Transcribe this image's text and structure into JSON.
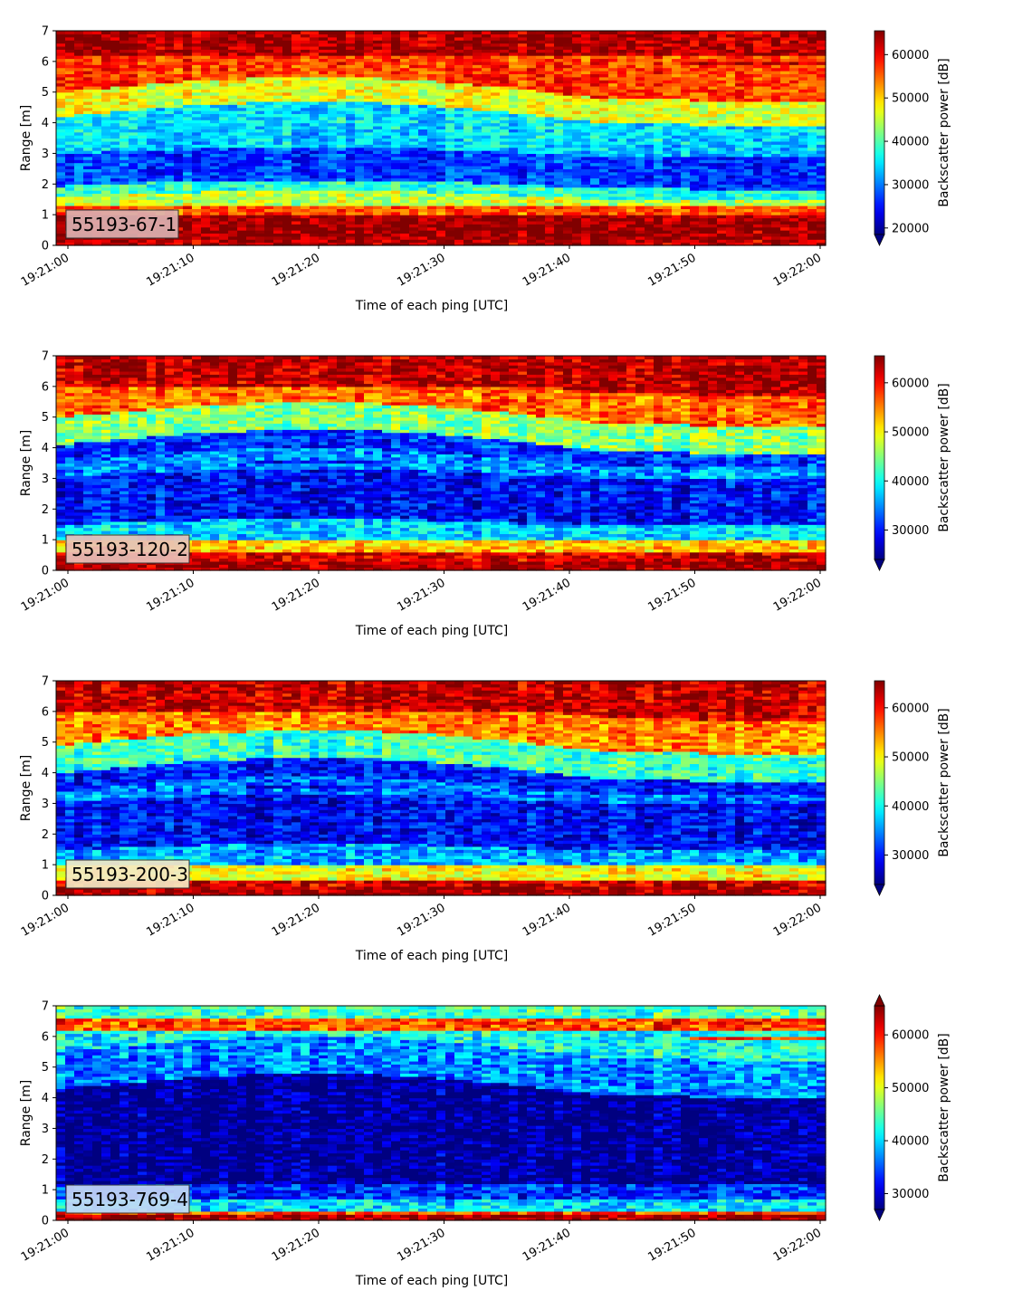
{
  "figure": {
    "background": "#ffffff"
  },
  "colormap": "jet",
  "chart_data": [
    {
      "type": "heatmap",
      "label": "55193-67-1",
      "label_bg": "#dcb1b1",
      "xlabel": "Time of each ping [UTC]",
      "ylabel": "Range [m]",
      "x_ticks": [
        "19:21:00",
        "19:21:10",
        "19:21:20",
        "19:21:30",
        "19:21:40",
        "19:21:50",
        "19:22:00"
      ],
      "y_ticks": [
        "0",
        "1",
        "2",
        "3",
        "4",
        "5",
        "6",
        "7"
      ],
      "ylim": [
        0,
        7
      ],
      "colorbar": {
        "label": "Backscatter power [dB]",
        "ticks": [
          "20000",
          "30000",
          "40000",
          "50000",
          "60000"
        ],
        "range": [
          18500,
          65500
        ],
        "extend": "min"
      },
      "bands": [
        {
          "range": [
            0.0,
            0.25
          ],
          "value": 63000
        },
        {
          "range": [
            0.25,
            1.05
          ],
          "value": 64500
        },
        {
          "range": [
            1.05,
            1.3
          ],
          "value": 56000
        },
        {
          "range": [
            1.3,
            1.6
          ],
          "value": 45000
        },
        {
          "range": [
            1.6,
            1.95
          ],
          "value": 38000
        },
        {
          "range": [
            1.95,
            3.0
          ],
          "value": 27000
        },
        {
          "range": [
            3.0,
            3.4
          ],
          "value": 34000
        },
        {
          "range": [
            3.4,
            4.2
          ],
          "value": 35000
        },
        {
          "range": [
            4.2,
            5.0
          ],
          "value": 47000
        },
        {
          "range": [
            5.0,
            6.2
          ],
          "value": 57000
        },
        {
          "range": [
            6.2,
            7.0
          ],
          "value": 63500
        }
      ]
    },
    {
      "type": "heatmap",
      "label": "55193-120-2",
      "label_bg": "#e8c0b8",
      "xlabel": "Time of each ping [UTC]",
      "ylabel": "Range [m]",
      "x_ticks": [
        "19:21:00",
        "19:21:10",
        "19:21:20",
        "19:21:30",
        "19:21:40",
        "19:21:50",
        "19:22:00"
      ],
      "y_ticks": [
        "0",
        "1",
        "2",
        "3",
        "4",
        "5",
        "6",
        "7"
      ],
      "ylim": [
        0,
        7
      ],
      "colorbar": {
        "label": "Backscatter power [dB]",
        "ticks": [
          "30000",
          "40000",
          "50000",
          "60000"
        ],
        "range": [
          24000,
          65500
        ],
        "extend": "min"
      },
      "bands": [
        {
          "range": [
            0.0,
            0.3
          ],
          "value": 64000
        },
        {
          "range": [
            0.3,
            0.6
          ],
          "value": 62000
        },
        {
          "range": [
            0.6,
            1.0
          ],
          "value": 52000
        },
        {
          "range": [
            1.0,
            1.5
          ],
          "value": 38000
        },
        {
          "range": [
            1.5,
            3.1
          ],
          "value": 29500
        },
        {
          "range": [
            3.1,
            3.5
          ],
          "value": 35000
        },
        {
          "range": [
            3.5,
            4.1
          ],
          "value": 31000
        },
        {
          "range": [
            4.1,
            5.0
          ],
          "value": 45000
        },
        {
          "range": [
            5.0,
            6.0
          ],
          "value": 56000
        },
        {
          "range": [
            6.0,
            7.0
          ],
          "value": 63000
        }
      ]
    },
    {
      "type": "heatmap",
      "label": "55193-200-3",
      "label_bg": "#f4e9c4",
      "xlabel": "Time of each ping [UTC]",
      "ylabel": "Range [m]",
      "x_ticks": [
        "19:21:00",
        "19:21:10",
        "19:21:20",
        "19:21:30",
        "19:21:40",
        "19:21:50",
        "19:22:00"
      ],
      "y_ticks": [
        "0",
        "1",
        "2",
        "3",
        "4",
        "5",
        "6",
        "7"
      ],
      "ylim": [
        0,
        7
      ],
      "colorbar": {
        "label": "Backscatter power [dB]",
        "ticks": [
          "30000",
          "40000",
          "50000",
          "60000"
        ],
        "range": [
          24000,
          65500
        ],
        "extend": "min"
      },
      "bands": [
        {
          "range": [
            0.0,
            0.3
          ],
          "value": 64000
        },
        {
          "range": [
            0.3,
            0.5
          ],
          "value": 62000
        },
        {
          "range": [
            0.5,
            1.0
          ],
          "value": 50000
        },
        {
          "range": [
            1.0,
            1.5
          ],
          "value": 36000
        },
        {
          "range": [
            1.5,
            3.1
          ],
          "value": 29000
        },
        {
          "range": [
            3.1,
            3.4
          ],
          "value": 34000
        },
        {
          "range": [
            3.4,
            4.0
          ],
          "value": 30000
        },
        {
          "range": [
            4.0,
            4.9
          ],
          "value": 42000
        },
        {
          "range": [
            4.9,
            6.0
          ],
          "value": 55000
        },
        {
          "range": [
            6.0,
            7.0
          ],
          "value": 62500
        }
      ]
    },
    {
      "type": "heatmap",
      "label": "55193-769-4",
      "label_bg": "#c4d8f4",
      "xlabel": "Time of each ping [UTC]",
      "ylabel": "Range [m]",
      "x_ticks": [
        "19:21:00",
        "19:21:10",
        "19:21:20",
        "19:21:30",
        "19:21:40",
        "19:21:50",
        "19:22:00"
      ],
      "y_ticks": [
        "0",
        "1",
        "2",
        "3",
        "4",
        "5",
        "6",
        "7"
      ],
      "ylim": [
        0,
        7
      ],
      "colorbar": {
        "label": "Backscatter power [dB]",
        "ticks": [
          "30000",
          "40000",
          "50000",
          "60000"
        ],
        "range": [
          27000,
          65500
        ],
        "extend": "both"
      },
      "bands": [
        {
          "range": [
            0.0,
            0.2
          ],
          "value": 64000
        },
        {
          "range": [
            0.2,
            0.35
          ],
          "value": 58000
        },
        {
          "range": [
            0.35,
            0.7
          ],
          "value": 40000
        },
        {
          "range": [
            0.7,
            1.2
          ],
          "value": 33000
        },
        {
          "range": [
            1.2,
            4.3
          ],
          "value": 27500
        },
        {
          "range": [
            4.3,
            5.5
          ],
          "value": 37000
        },
        {
          "range": [
            5.5,
            6.2
          ],
          "value": 42000
        },
        {
          "range": [
            6.2,
            6.6
          ],
          "value": 58000
        },
        {
          "range": [
            6.6,
            7.0
          ],
          "value": 44000
        }
      ]
    }
  ]
}
